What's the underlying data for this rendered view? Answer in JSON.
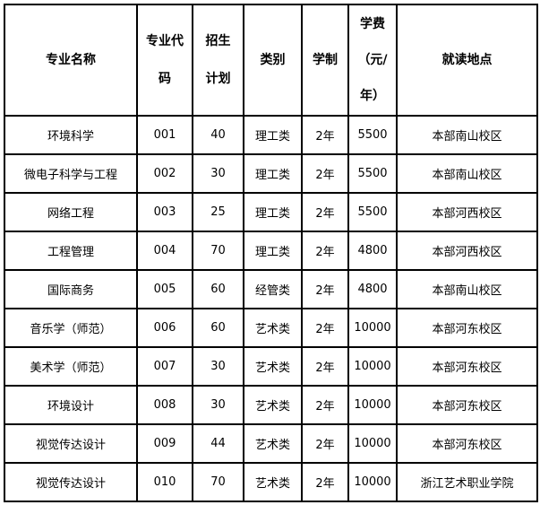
{
  "headers": {
    "name": "专业名称",
    "code_line1": "专业代",
    "code_line2": "码",
    "plan_line1": "招生",
    "plan_line2": "计划",
    "category": "类别",
    "duration": "学制",
    "fee_line1": "学费",
    "fee_line2": "（元/",
    "fee_line3": "年）",
    "location": "就读地点"
  },
  "rows": [
    {
      "name": "环境科学",
      "code": "001",
      "plan": "40",
      "category": "理工类",
      "duration": "2年",
      "fee": "5500",
      "location": "本部南山校区"
    },
    {
      "name": "微电子科学与工程",
      "code": "002",
      "plan": "30",
      "category": "理工类",
      "duration": "2年",
      "fee": "5500",
      "location": "本部南山校区"
    },
    {
      "name": "网络工程",
      "code": "003",
      "plan": "25",
      "category": "理工类",
      "duration": "2年",
      "fee": "5500",
      "location": "本部河西校区"
    },
    {
      "name": "工程管理",
      "code": "004",
      "plan": "70",
      "category": "理工类",
      "duration": "2年",
      "fee": "4800",
      "location": "本部河西校区"
    },
    {
      "name": "国际商务",
      "code": "005",
      "plan": "60",
      "category": "经管类",
      "duration": "2年",
      "fee": "4800",
      "location": "本部南山校区"
    },
    {
      "name": "音乐学（师范）",
      "code": "006",
      "plan": "60",
      "category": "艺术类",
      "duration": "2年",
      "fee": "10000",
      "location": "本部河东校区"
    },
    {
      "name": "美术学（师范）",
      "code": "007",
      "plan": "30",
      "category": "艺术类",
      "duration": "2年",
      "fee": "10000",
      "location": "本部河东校区"
    },
    {
      "name": "环境设计",
      "code": "008",
      "plan": "30",
      "category": "艺术类",
      "duration": "2年",
      "fee": "10000",
      "location": "本部河东校区"
    },
    {
      "name": "视觉传达设计",
      "code": "009",
      "plan": "44",
      "category": "艺术类",
      "duration": "2年",
      "fee": "10000",
      "location": "本部河东校区"
    },
    {
      "name": "视觉传达设计",
      "code": "010",
      "plan": "70",
      "category": "艺术类",
      "duration": "2年",
      "fee": "10000",
      "location": "浙江艺术职业学院"
    }
  ]
}
